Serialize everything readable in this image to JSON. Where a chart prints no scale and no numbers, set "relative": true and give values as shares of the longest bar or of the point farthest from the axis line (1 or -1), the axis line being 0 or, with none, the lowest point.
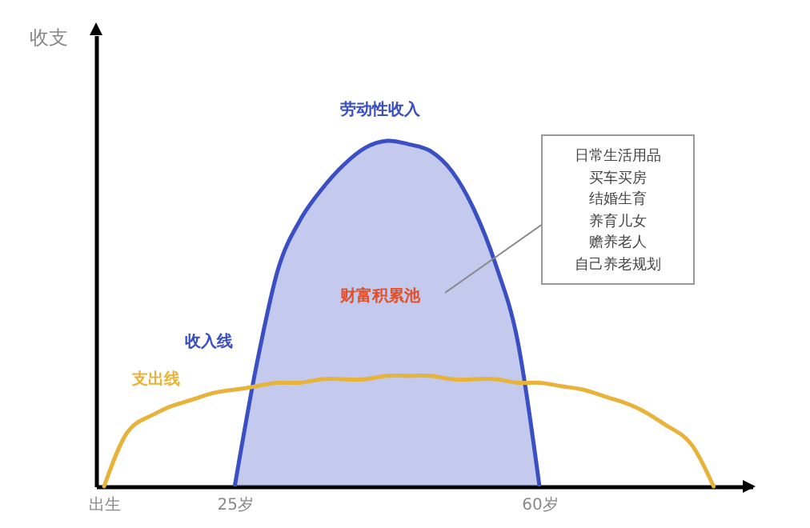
{
  "chart_data": {
    "type": "line",
    "relative": true,
    "ylabel": "收支",
    "categories": [
      "出生",
      null,
      null,
      null,
      null,
      null,
      "25岁",
      null,
      null,
      null,
      null,
      null,
      null,
      null,
      null,
      null,
      null,
      null,
      null,
      null,
      "60岁",
      null,
      null,
      null,
      null,
      null,
      null,
      null,
      null,
      null
    ],
    "series": [
      {
        "name": "收入线",
        "type": "area",
        "color": "#3a4fc4",
        "values": [
          null,
          null,
          null,
          null,
          null,
          null,
          0,
          0.35,
          0.63,
          0.77,
          0.86,
          0.93,
          0.98,
          1,
          0.99,
          0.97,
          0.91,
          0.8,
          0.64,
          0.42,
          0,
          null,
          null,
          null,
          null,
          null,
          null,
          null,
          null,
          null
        ]
      },
      {
        "name": "支出线",
        "color": "#e8b33a",
        "values": [
          0,
          0.15,
          0.2,
          0.23,
          0.25,
          0.27,
          0.28,
          0.29,
          0.3,
          0.3,
          0.31,
          0.31,
          0.31,
          0.32,
          0.32,
          0.32,
          0.31,
          0.31,
          0.31,
          0.3,
          0.3,
          0.29,
          0.28,
          0.26,
          0.24,
          0.21,
          0.17,
          0.12,
          0,
          null
        ]
      }
    ],
    "annotations": [
      "劳动性收入",
      "财富积累池",
      "日常生活用品",
      "买车买房",
      "结婚生育",
      "养育儿女",
      "赡养老人",
      "自己养老规划"
    ],
    "marker": "none",
    "line_style": "solid"
  }
}
